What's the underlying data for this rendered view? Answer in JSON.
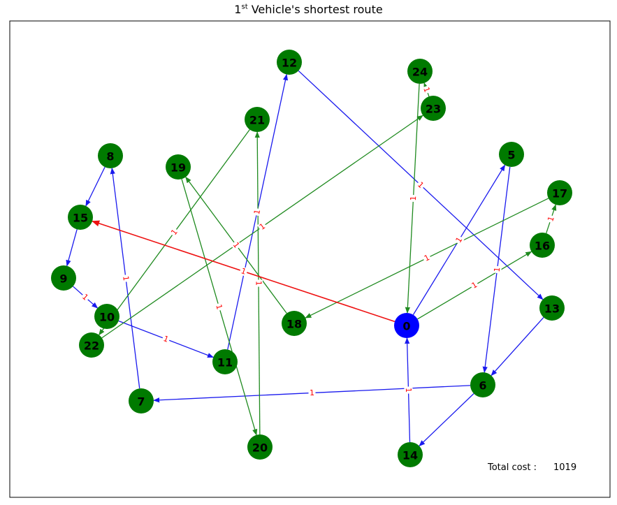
{
  "title": {
    "ordinal": "1",
    "ordinal_suffix": "st",
    "text": " Vehicle's shortest route"
  },
  "total_cost": {
    "label": "Total cost :",
    "value": "1019"
  },
  "colors": {
    "depot": "#0000ff",
    "customer": "#007a00",
    "route_blue": "#1a1aee",
    "route_green": "#1f8a1f",
    "route_red": "#ee1111",
    "edge_label": "#ff0000"
  },
  "nodes": [
    {
      "id": "0",
      "type": "depot"
    },
    {
      "id": "5",
      "type": "customer"
    },
    {
      "id": "6",
      "type": "customer"
    },
    {
      "id": "7",
      "type": "customer"
    },
    {
      "id": "8",
      "type": "customer"
    },
    {
      "id": "9",
      "type": "customer"
    },
    {
      "id": "10",
      "type": "customer"
    },
    {
      "id": "11",
      "type": "customer"
    },
    {
      "id": "12",
      "type": "customer"
    },
    {
      "id": "13",
      "type": "customer"
    },
    {
      "id": "14",
      "type": "customer"
    },
    {
      "id": "15",
      "type": "customer"
    },
    {
      "id": "16",
      "type": "customer"
    },
    {
      "id": "17",
      "type": "customer"
    },
    {
      "id": "18",
      "type": "customer"
    },
    {
      "id": "19",
      "type": "customer"
    },
    {
      "id": "20",
      "type": "customer"
    },
    {
      "id": "21",
      "type": "customer"
    },
    {
      "id": "22",
      "type": "customer"
    },
    {
      "id": "23",
      "type": "customer"
    },
    {
      "id": "24",
      "type": "customer"
    }
  ],
  "edges": [
    {
      "from": "0",
      "to": "5",
      "route": "blue",
      "label": "1"
    },
    {
      "from": "5",
      "to": "6",
      "route": "blue",
      "label": "1"
    },
    {
      "from": "6",
      "to": "14",
      "route": "blue",
      "label": ""
    },
    {
      "from": "14",
      "to": "0",
      "route": "blue",
      "label": "1"
    },
    {
      "from": "13",
      "to": "6",
      "route": "blue",
      "label": ""
    },
    {
      "from": "6",
      "to": "7",
      "route": "blue",
      "label": "1"
    },
    {
      "from": "7",
      "to": "8",
      "route": "blue",
      "label": "1"
    },
    {
      "from": "8",
      "to": "15",
      "route": "blue",
      "label": ""
    },
    {
      "from": "15",
      "to": "9",
      "route": "blue",
      "label": ""
    },
    {
      "from": "9",
      "to": "10",
      "route": "blue",
      "label": "1"
    },
    {
      "from": "10",
      "to": "11",
      "route": "blue",
      "label": "1"
    },
    {
      "from": "11",
      "to": "12",
      "route": "blue",
      "label": "1"
    },
    {
      "from": "12",
      "to": "13",
      "route": "blue",
      "label": "1"
    },
    {
      "from": "0",
      "to": "16",
      "route": "green",
      "label": "1"
    },
    {
      "from": "16",
      "to": "17",
      "route": "green",
      "label": "1"
    },
    {
      "from": "17",
      "to": "18",
      "route": "green",
      "label": "1"
    },
    {
      "from": "18",
      "to": "19",
      "route": "green",
      "label": "1"
    },
    {
      "from": "19",
      "to": "20",
      "route": "green",
      "label": "1"
    },
    {
      "from": "20",
      "to": "21",
      "route": "green",
      "label": "1"
    },
    {
      "from": "21",
      "to": "22",
      "route": "green",
      "label": "1"
    },
    {
      "from": "22",
      "to": "23",
      "route": "green",
      "label": "1"
    },
    {
      "from": "23",
      "to": "24",
      "route": "green",
      "label": "1"
    },
    {
      "from": "24",
      "to": "0",
      "route": "green",
      "label": "1"
    },
    {
      "from": "0",
      "to": "15",
      "route": "red",
      "label": "1"
    }
  ]
}
